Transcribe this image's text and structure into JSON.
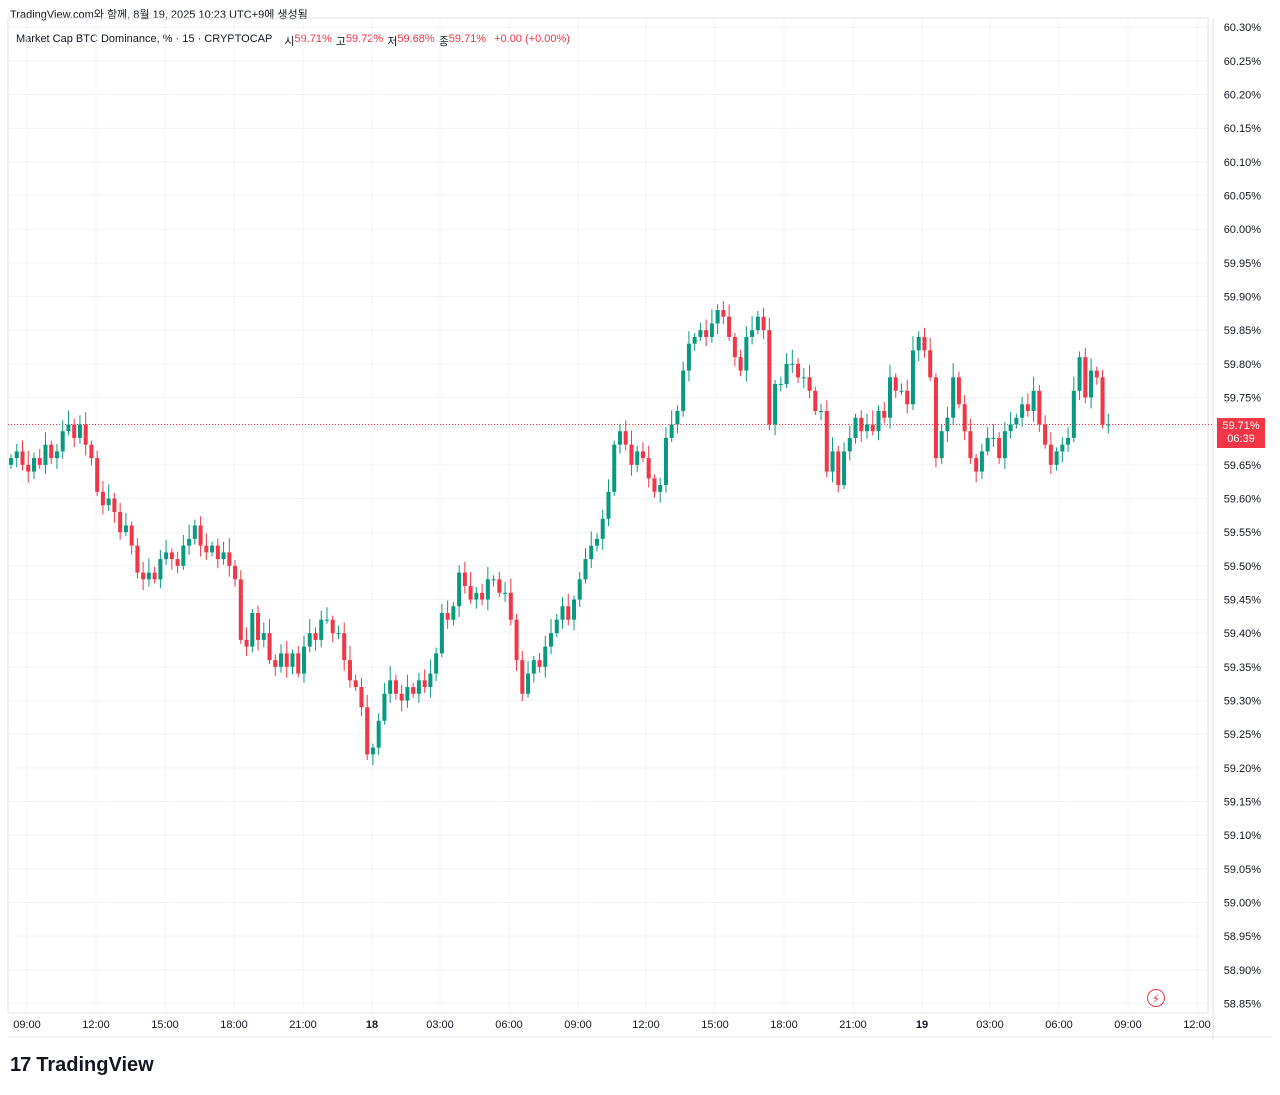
{
  "caption": "TradingView.com와 함께, 8월 19, 2025 10:23 UTC+9에 생성됨",
  "legend": {
    "symbol": "Market Cap BTC Dominance, % · 15 · CRYPTOCAP",
    "open_label": "시",
    "open": "59.71%",
    "high_label": "고",
    "high": "59.72%",
    "low_label": "저",
    "low": "59.68%",
    "close_label": "종",
    "close": "59.71%",
    "change": "+0.00 (+0.00%)"
  },
  "last_price": {
    "value": "59.71%",
    "countdown": "06:39"
  },
  "brand": {
    "logo": "17",
    "name": "TradingView"
  },
  "icons": {
    "alert": "bolt-icon",
    "logo": "tradingview-logo-icon"
  },
  "colors": {
    "up": "#089981",
    "down": "#f23645",
    "grid": "#f0f3fa",
    "text": "#131722"
  },
  "chart_data": {
    "type": "candlestick",
    "y_unit": "%",
    "ylim": [
      58.84,
      60.31
    ],
    "y_ticks": [
      60.3,
      60.25,
      60.2,
      60.15,
      60.1,
      60.05,
      60.0,
      59.95,
      59.9,
      59.85,
      59.8,
      59.75,
      59.65,
      59.6,
      59.55,
      59.5,
      59.45,
      59.4,
      59.35,
      59.3,
      59.25,
      59.2,
      59.15,
      59.1,
      59.05,
      59.0,
      58.95,
      58.9,
      58.85
    ],
    "y_tick_labels": [
      "60.30%",
      "60.25%",
      "60.20%",
      "60.15%",
      "60.10%",
      "60.05%",
      "60.00%",
      "59.95%",
      "59.90%",
      "59.85%",
      "59.80%",
      "59.75%",
      "59.65%",
      "59.60%",
      "59.55%",
      "59.50%",
      "59.45%",
      "59.40%",
      "59.35%",
      "59.30%",
      "59.25%",
      "59.20%",
      "59.15%",
      "59.10%",
      "59.05%",
      "59.00%",
      "58.95%",
      "58.90%",
      "58.85%"
    ],
    "x_tick_labels": [
      "09:00",
      "12:00",
      "15:00",
      "18:00",
      "21:00",
      "18",
      "03:00",
      "06:00",
      "09:00",
      "12:00",
      "15:00",
      "18:00",
      "21:00",
      "19",
      "03:00",
      "06:00",
      "09:00",
      "12:00"
    ],
    "interval_minutes": 15,
    "first_bar_time": "08-17 08:45",
    "last_value": 59.71,
    "closes": [
      59.66,
      59.67,
      59.65,
      59.64,
      59.66,
      59.65,
      59.68,
      59.66,
      59.67,
      59.7,
      59.71,
      59.69,
      59.71,
      59.68,
      59.66,
      59.61,
      59.59,
      59.6,
      59.58,
      59.55,
      59.56,
      59.53,
      59.49,
      59.48,
      59.49,
      59.48,
      59.51,
      59.52,
      59.51,
      59.5,
      59.53,
      59.54,
      59.56,
      59.53,
      59.52,
      59.53,
      59.51,
      59.52,
      59.5,
      59.48,
      59.39,
      59.38,
      59.43,
      59.39,
      59.4,
      59.36,
      59.35,
      59.37,
      59.35,
      59.37,
      59.34,
      59.38,
      59.4,
      59.39,
      59.42,
      59.42,
      59.4,
      59.4,
      59.36,
      59.33,
      59.32,
      59.29,
      59.22,
      59.23,
      59.27,
      59.31,
      59.33,
      59.31,
      59.3,
      59.32,
      59.31,
      59.33,
      59.32,
      59.34,
      59.37,
      59.43,
      59.42,
      59.44,
      59.49,
      59.47,
      59.45,
      59.46,
      59.45,
      59.48,
      59.48,
      59.46,
      59.46,
      59.42,
      59.36,
      59.31,
      59.34,
      59.36,
      59.35,
      59.38,
      59.4,
      59.42,
      59.44,
      59.42,
      59.45,
      59.48,
      59.51,
      59.53,
      59.54,
      59.57,
      59.61,
      59.68,
      59.7,
      59.68,
      59.65,
      59.67,
      59.66,
      59.63,
      59.61,
      59.62,
      59.69,
      59.71,
      59.73,
      59.79,
      59.83,
      59.84,
      59.85,
      59.84,
      59.86,
      59.88,
      59.87,
      59.84,
      59.81,
      59.79,
      59.84,
      59.85,
      59.87,
      59.85,
      59.71,
      59.77,
      59.77,
      59.8,
      59.8,
      59.78,
      59.78,
      59.76,
      59.73,
      59.73,
      59.64,
      59.67,
      59.62,
      59.67,
      59.69,
      59.72,
      59.7,
      59.71,
      59.7,
      59.73,
      59.72,
      59.78,
      59.76,
      59.76,
      59.74,
      59.82,
      59.84,
      59.82,
      59.78,
      59.66,
      59.7,
      59.72,
      59.78,
      59.74,
      59.7,
      59.66,
      59.64,
      59.67,
      59.69,
      59.69,
      59.66,
      59.7,
      59.71,
      59.72,
      59.74,
      59.73,
      59.76,
      59.71,
      59.68,
      59.65,
      59.67,
      59.68,
      59.69,
      59.76,
      59.81,
      59.75,
      59.79,
      59.78,
      59.71,
      59.71
    ]
  }
}
